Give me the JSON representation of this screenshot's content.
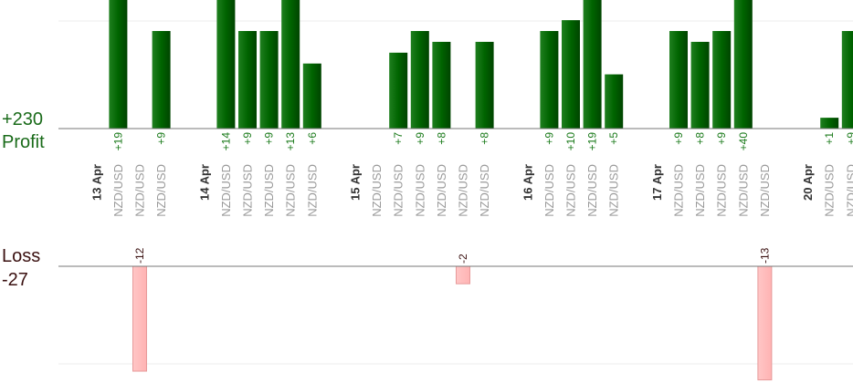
{
  "labels": {
    "profit_total": "+230",
    "profit_label": "Profit",
    "loss_label": "Loss",
    "loss_total": "-27"
  },
  "colors": {
    "profit_bar": "#006400",
    "profit_text": "#1a7a1a",
    "loss_bar": "#ffb3b3",
    "loss_text": "#3a1010",
    "date_text": "#333333",
    "pair_text": "#9a9a9a"
  },
  "chart_data": {
    "type": "bar",
    "days": [
      {
        "date": "13 Apr",
        "trades": [
          {
            "pair": "NZD/USD",
            "profit": 19
          },
          {
            "pair": "NZD/USD",
            "loss": -12
          },
          {
            "pair": "NZD/USD",
            "profit": 9
          }
        ]
      },
      {
        "date": "14 Apr",
        "trades": [
          {
            "pair": "NZD/USD",
            "profit": 14
          },
          {
            "pair": "NZD/USD",
            "profit": 9
          },
          {
            "pair": "NZD/USD",
            "profit": 9
          },
          {
            "pair": "NZD/USD",
            "profit": 13
          },
          {
            "pair": "NZD/USD",
            "profit": 6
          }
        ]
      },
      {
        "date": "15 Apr",
        "trades": [
          {
            "pair": "NZD/USD"
          },
          {
            "pair": "NZD/USD",
            "profit": 7
          },
          {
            "pair": "NZD/USD",
            "profit": 9
          },
          {
            "pair": "NZD/USD",
            "profit": 8
          },
          {
            "pair": "NZD/USD",
            "loss": -2
          },
          {
            "pair": "NZD/USD",
            "profit": 8
          }
        ]
      },
      {
        "date": "16 Apr",
        "trades": [
          {
            "pair": "NZD/USD",
            "profit": 9
          },
          {
            "pair": "NZD/USD",
            "profit": 10
          },
          {
            "pair": "NZD/USD",
            "profit": 19
          },
          {
            "pair": "NZD/USD",
            "profit": 5
          }
        ]
      },
      {
        "date": "17 Apr",
        "trades": [
          {
            "pair": "NZD/USD",
            "profit": 9
          },
          {
            "pair": "NZD/USD",
            "profit": 8
          },
          {
            "pair": "NZD/USD",
            "profit": 9
          },
          {
            "pair": "NZD/USD",
            "profit": 40
          },
          {
            "pair": "NZD/USD",
            "loss": -13
          }
        ]
      },
      {
        "date": "20 Apr",
        "trades": [
          {
            "pair": "NZD/USD",
            "profit": 1
          },
          {
            "pair": "NZD/USD",
            "profit": 9
          }
        ]
      }
    ]
  }
}
